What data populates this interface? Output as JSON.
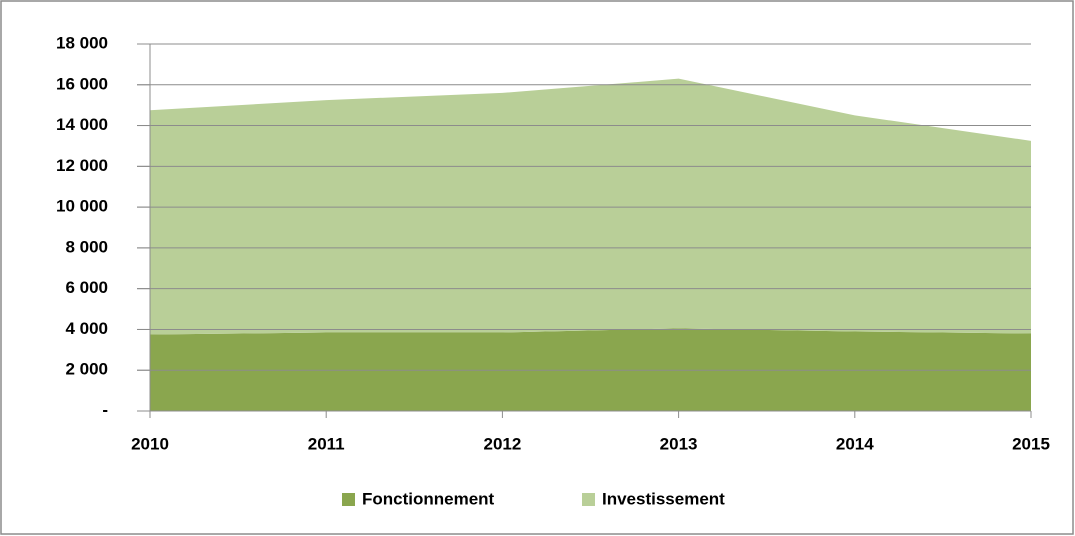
{
  "chart_data": {
    "type": "stacked_area",
    "categories": [
      "2010",
      "2011",
      "2012",
      "2013",
      "2014",
      "2015"
    ],
    "series": [
      {
        "name": "Fonctionnement",
        "color": "#8aa64e",
        "values": [
          3750,
          3850,
          3850,
          4050,
          3900,
          3800
        ]
      },
      {
        "name": "Investissement",
        "color": "#b9cf98",
        "values": [
          11000,
          11400,
          11750,
          12250,
          10600,
          9450
        ]
      }
    ],
    "ylim": [
      0,
      18000
    ],
    "yticks": [
      {
        "value": 0,
        "label": "-"
      },
      {
        "value": 2000,
        "label": "2 000"
      },
      {
        "value": 4000,
        "label": "4 000"
      },
      {
        "value": 6000,
        "label": "6 000"
      },
      {
        "value": 8000,
        "label": "8 000"
      },
      {
        "value": 10000,
        "label": "10 000"
      },
      {
        "value": 12000,
        "label": "12 000"
      },
      {
        "value": 14000,
        "label": "14 000"
      },
      {
        "value": 16000,
        "label": "16 000"
      },
      {
        "value": 18000,
        "label": "18 000"
      }
    ],
    "grid": true,
    "legend": "bottom"
  }
}
